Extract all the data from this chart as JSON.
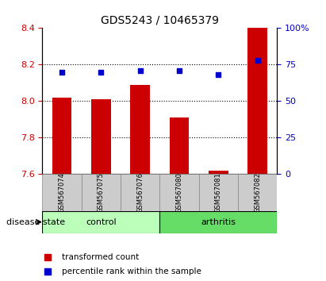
{
  "title": "GDS5243 / 10465379",
  "samples": [
    "GSM567074",
    "GSM567075",
    "GSM567076",
    "GSM567080",
    "GSM567081",
    "GSM567082"
  ],
  "bar_values": [
    8.02,
    8.01,
    8.09,
    7.91,
    7.62,
    8.4
  ],
  "percentile_values": [
    70,
    70,
    71,
    71,
    68,
    78
  ],
  "bar_color": "#cc0000",
  "percentile_color": "#0000cc",
  "ylim_left": [
    7.6,
    8.4
  ],
  "ylim_right": [
    0,
    100
  ],
  "yticks_left": [
    7.6,
    7.8,
    8.0,
    8.2,
    8.4
  ],
  "yticks_right": [
    0,
    25,
    50,
    75,
    100
  ],
  "groups": [
    {
      "label": "control",
      "indices": [
        0,
        1,
        2
      ],
      "color": "#aaffaa"
    },
    {
      "label": "arthritis",
      "indices": [
        3,
        4,
        5
      ],
      "color": "#44dd44"
    }
  ],
  "disease_state_label": "disease state",
  "legend_items": [
    {
      "label": "transformed count",
      "color": "#cc0000",
      "marker": "s"
    },
    {
      "label": "percentile rank within the sample",
      "color": "#0000cc",
      "marker": "s"
    }
  ],
  "bar_bottom": 7.6,
  "grid_color": "black",
  "grid_linestyle": "dotted",
  "xlabel_rotation": -90,
  "tick_label_color_left": "#cc0000",
  "tick_label_color_right": "#0000cc"
}
